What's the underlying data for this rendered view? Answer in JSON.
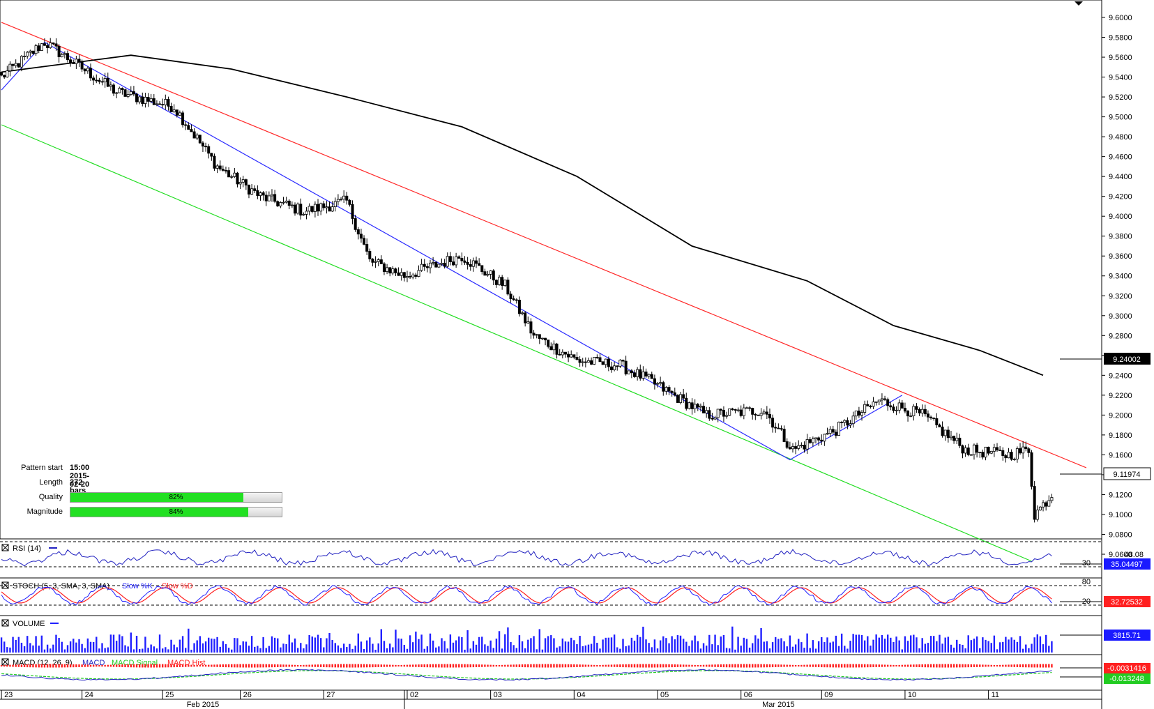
{
  "colors": {
    "candle_up": "#ffffff",
    "candle_down": "#000000",
    "ma_line": "#000000",
    "pattern_upper": "#ff2a2a",
    "pattern_lower": "#22dd22",
    "pattern_zigzag": "#2a2aff",
    "rsi_line": "#2020c0",
    "stoch_k": "#2020ff",
    "stoch_d": "#ff2020",
    "volume_bar": "#2020ff",
    "macd_line": "#2020c0",
    "macd_signal": "#22cc22",
    "macd_hist": "#ff2020",
    "price_label_bg": "#000000",
    "rsi_label_bg": "#1a1aff",
    "stoch_label_bg": "#ff2020",
    "macd_label_red": "#ff2020",
    "macd_label_green": "#22cc22"
  },
  "pattern_info": {
    "start_label": "Pattern start",
    "start_value": "15:00 2015-02-20",
    "length_label": "Length",
    "length_value": "272 bars",
    "quality_label": "Quality",
    "quality_value": "82%",
    "quality_pct": 82,
    "magnitude_label": "Magnitude",
    "magnitude_value": "84%",
    "magnitude_pct": 84
  },
  "chart_data": {
    "type": "candlestick",
    "price_axis": {
      "min": 9.05,
      "max": 9.6071,
      "ticks": [
        "9.6000",
        "9.5800",
        "9.5600",
        "9.5400",
        "9.5200",
        "9.5000",
        "9.4800",
        "9.4600",
        "9.4400",
        "9.4200",
        "9.4000",
        "9.3800",
        "9.3600",
        "9.3400",
        "9.3200",
        "9.3000",
        "9.2800",
        "9.2600",
        "9.2400",
        "9.2200",
        "9.2000",
        "9.1800",
        "9.1600",
        "9.1400",
        "9.1200",
        "9.1000",
        "9.0800",
        "9.0600"
      ]
    },
    "current_price_label": "9.11974",
    "ma_price_label": "9.24002",
    "time_axis": {
      "day_labels": [
        "23",
        "24",
        "25",
        "26",
        "27",
        "02",
        "03",
        "04",
        "05",
        "06",
        "09",
        "10",
        "11"
      ],
      "month_labels": [
        "Feb 2015",
        "Mar 2015"
      ]
    },
    "key_points": [
      {
        "bar": 0,
        "price": 9.54
      },
      {
        "bar": 15,
        "price": 9.575
      },
      {
        "bar": 40,
        "price": 9.525
      },
      {
        "bar": 60,
        "price": 9.51
      },
      {
        "bar": 75,
        "price": 9.45
      },
      {
        "bar": 90,
        "price": 9.42
      },
      {
        "bar": 105,
        "price": 9.405
      },
      {
        "bar": 120,
        "price": 9.415
      },
      {
        "bar": 128,
        "price": 9.355
      },
      {
        "bar": 140,
        "price": 9.34
      },
      {
        "bar": 160,
        "price": 9.36
      },
      {
        "bar": 175,
        "price": 9.33
      },
      {
        "bar": 185,
        "price": 9.28
      },
      {
        "bar": 200,
        "price": 9.255
      },
      {
        "bar": 215,
        "price": 9.25
      },
      {
        "bar": 225,
        "price": 9.235
      },
      {
        "bar": 245,
        "price": 9.2
      },
      {
        "bar": 265,
        "price": 9.205
      },
      {
        "bar": 275,
        "price": 9.165
      },
      {
        "bar": 290,
        "price": 9.185
      },
      {
        "bar": 305,
        "price": 9.215
      },
      {
        "bar": 320,
        "price": 9.2
      },
      {
        "bar": 335,
        "price": 9.165
      },
      {
        "bar": 350,
        "price": 9.16
      },
      {
        "bar": 357,
        "price": 9.165
      },
      {
        "bar": 359,
        "price": 9.1
      },
      {
        "bar": 365,
        "price": 9.12
      }
    ],
    "moving_average": [
      {
        "bar": 0,
        "price": 9.545
      },
      {
        "bar": 45,
        "price": 9.562
      },
      {
        "bar": 80,
        "price": 9.548
      },
      {
        "bar": 120,
        "price": 9.52
      },
      {
        "bar": 160,
        "price": 9.49
      },
      {
        "bar": 200,
        "price": 9.44
      },
      {
        "bar": 240,
        "price": 9.37
      },
      {
        "bar": 280,
        "price": 9.335
      },
      {
        "bar": 310,
        "price": 9.29
      },
      {
        "bar": 340,
        "price": 9.265
      },
      {
        "bar": 362,
        "price": 9.24
      }
    ],
    "pattern_lines": {
      "upper": [
        {
          "bar": 0,
          "price": 9.595
        },
        {
          "bar": 377,
          "price": 9.147
        }
      ],
      "lower": [
        {
          "bar": 0,
          "price": 9.492
        },
        {
          "bar": 358,
          "price": 9.053
        }
      ],
      "zigzag": [
        {
          "bar": 0,
          "price": 9.527
        },
        {
          "bar": 15,
          "price": 9.575
        },
        {
          "bar": 274,
          "price": 9.155
        },
        {
          "bar": 313,
          "price": 9.22
        }
      ]
    },
    "indicators": {
      "rsi": {
        "label": "RSI (14)",
        "value": "35.04497",
        "level_low": "30",
        "level_high_hint": "48.08"
      },
      "stoch": {
        "label": "STOCH (5, 3, SMA, 3, SMA)",
        "legend_k": "Slow %K",
        "legend_d": "Slow %D",
        "value": "32.72532",
        "level_80": "80",
        "level_20": "20"
      },
      "volume": {
        "label": "VOLUME",
        "value": "3815.71"
      },
      "macd": {
        "label": "MACD (12, 26, 9)",
        "legend_macd": "MACD",
        "legend_signal": "MACD Signal",
        "legend_hist": "MACD Hist",
        "value_main": "-0.0031416",
        "value_signal": "-0.013248"
      }
    }
  }
}
